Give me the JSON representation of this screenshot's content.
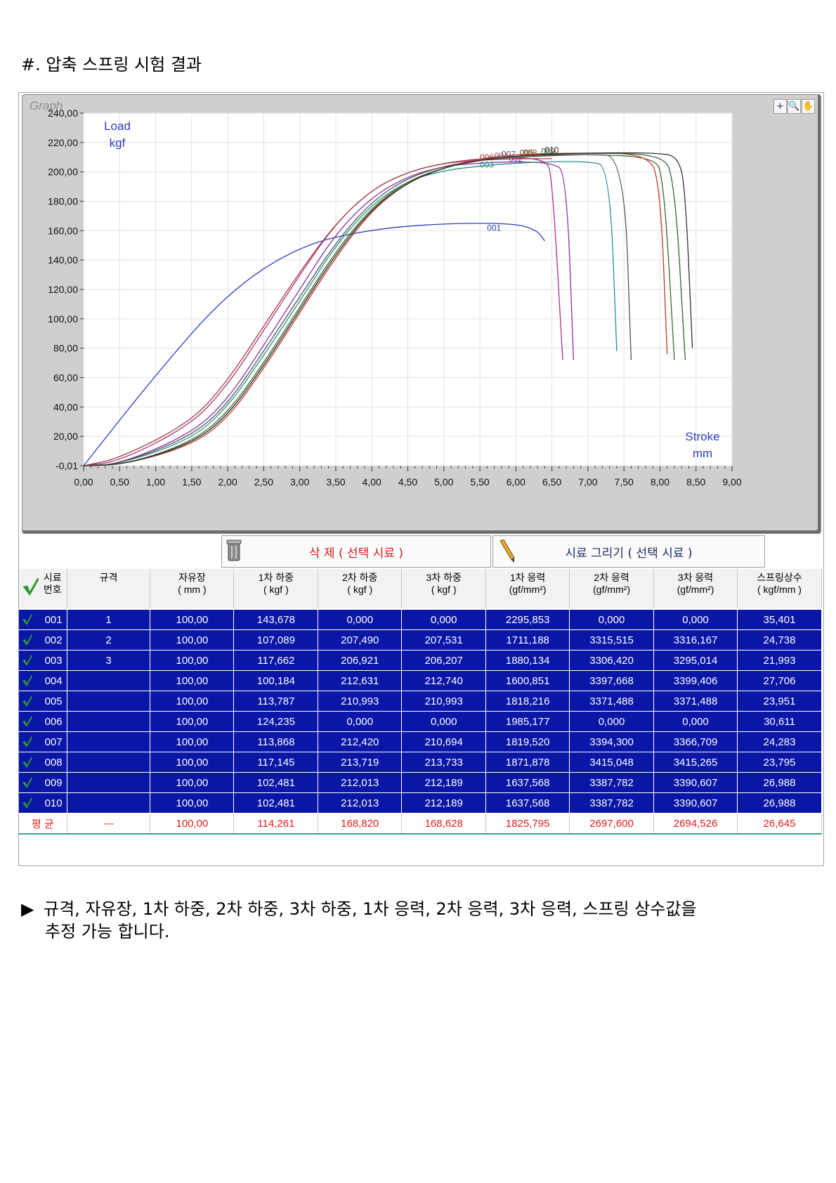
{
  "heading": "#. 압축 스프링  시험 결과",
  "graph": {
    "caption": "Graph",
    "tools": [
      "+",
      "🔍",
      "✋"
    ],
    "y_label_line1": "Load",
    "y_label_line2": "kgf",
    "x_label_line1": "Stroke",
    "x_label_line2": "mm"
  },
  "chart_data": {
    "type": "line",
    "xlim": [
      0,
      9
    ],
    "ylim": [
      -0.01,
      240
    ],
    "x_ticks": [
      "0,00",
      "0,50",
      "1,00",
      "1,50",
      "2,00",
      "2,50",
      "3,00",
      "3,50",
      "4,00",
      "4,50",
      "5,00",
      "5,50",
      "6,00",
      "6,50",
      "7,00",
      "7,50",
      "8,00",
      "8,50",
      "9,00"
    ],
    "y_ticks": [
      {
        "v": 240,
        "label": "240,00"
      },
      {
        "v": 220,
        "label": "220,00"
      },
      {
        "v": 200,
        "label": "200,00"
      },
      {
        "v": 180,
        "label": "180,00"
      },
      {
        "v": 160,
        "label": "160,00"
      },
      {
        "v": 140,
        "label": "140,00"
      },
      {
        "v": 120,
        "label": "120,00"
      },
      {
        "v": 100,
        "label": "100,00"
      },
      {
        "v": 80,
        "label": "80,00"
      },
      {
        "v": 60,
        "label": "60,00"
      },
      {
        "v": 40,
        "label": "40,00"
      },
      {
        "v": 20,
        "label": "20,00"
      },
      {
        "v": -0.01,
        "label": "-0,01"
      }
    ],
    "grid": true,
    "series": [
      {
        "name": "001",
        "color": "#2b3fbf",
        "label_at": [
          5.6,
          160
        ],
        "points": [
          [
            0,
            0
          ],
          [
            1.0,
            62
          ],
          [
            2.0,
            118
          ],
          [
            3.0,
            150
          ],
          [
            4.0,
            161
          ],
          [
            5.0,
            165
          ],
          [
            6.0,
            165
          ],
          [
            6.3,
            160
          ],
          [
            6.4,
            153
          ]
        ]
      },
      {
        "name": "002",
        "color": "#8a2fb0",
        "label_at": [
          5.9,
          207
        ],
        "points": [
          [
            0,
            0
          ],
          [
            0.5,
            1
          ],
          [
            1.5,
            22
          ],
          [
            2.0,
            45
          ],
          [
            2.5,
            82
          ],
          [
            3.0,
            120
          ],
          [
            3.5,
            158
          ],
          [
            4.0,
            183
          ],
          [
            4.5,
            197
          ],
          [
            5.0,
            204
          ],
          [
            5.5,
            206
          ],
          [
            6.0,
            207
          ],
          [
            6.5,
            206
          ],
          [
            6.7,
            200
          ],
          [
            6.8,
            72
          ]
        ]
      },
      {
        "name": "003",
        "color": "#2a8f88",
        "label_at": [
          5.5,
          203
        ],
        "points": [
          [
            0,
            0
          ],
          [
            0.5,
            1
          ],
          [
            1.5,
            18
          ],
          [
            2.0,
            40
          ],
          [
            2.5,
            75
          ],
          [
            3.0,
            112
          ],
          [
            3.5,
            150
          ],
          [
            4.0,
            178
          ],
          [
            4.5,
            194
          ],
          [
            5.0,
            201
          ],
          [
            5.5,
            204
          ],
          [
            6.0,
            206
          ],
          [
            6.5,
            207
          ],
          [
            7.0,
            207
          ],
          [
            7.3,
            204
          ],
          [
            7.4,
            78
          ]
        ]
      },
      {
        "name": "004",
        "color": "#b0307a",
        "label_at": [
          5.7,
          209
        ],
        "points": [
          [
            0,
            0
          ],
          [
            0.5,
            3
          ],
          [
            1.5,
            28
          ],
          [
            2.0,
            55
          ],
          [
            2.5,
            92
          ],
          [
            3.0,
            130
          ],
          [
            3.5,
            165
          ],
          [
            4.0,
            188
          ],
          [
            4.5,
            200
          ],
          [
            5.0,
            206
          ],
          [
            5.5,
            209
          ],
          [
            6.0,
            210
          ],
          [
            6.4,
            208
          ],
          [
            6.5,
            200
          ],
          [
            6.65,
            72
          ]
        ]
      },
      {
        "name": "005",
        "color": "#3b6a2a",
        "label_at": [
          6.05,
          211
        ],
        "points": [
          [
            0,
            0
          ],
          [
            0.6,
            1
          ],
          [
            1.5,
            16
          ],
          [
            2.0,
            36
          ],
          [
            2.5,
            70
          ],
          [
            3.0,
            108
          ],
          [
            3.5,
            146
          ],
          [
            4.0,
            176
          ],
          [
            4.5,
            194
          ],
          [
            5.0,
            203
          ],
          [
            5.5,
            208
          ],
          [
            6.0,
            211
          ],
          [
            7.0,
            212
          ],
          [
            7.9,
            210
          ],
          [
            8.05,
            198
          ],
          [
            8.2,
            72
          ]
        ]
      },
      {
        "name": "006",
        "color": "#9b3f3f",
        "label_at": [
          5.5,
          208
        ],
        "points": [
          [
            0,
            0
          ],
          [
            0.5,
            5
          ],
          [
            1.5,
            30
          ],
          [
            2.0,
            58
          ],
          [
            2.5,
            95
          ],
          [
            3.0,
            132
          ],
          [
            3.5,
            165
          ],
          [
            4.0,
            188
          ],
          [
            4.5,
            200
          ],
          [
            5.0,
            206
          ],
          [
            5.5,
            208
          ],
          [
            6.0,
            209
          ],
          [
            6.5,
            209
          ]
        ]
      },
      {
        "name": "007",
        "color": "#555555",
        "label_at": [
          5.8,
          210
        ],
        "points": [
          [
            0,
            0
          ],
          [
            0.5,
            1
          ],
          [
            1.5,
            20
          ],
          [
            2.0,
            42
          ],
          [
            2.5,
            78
          ],
          [
            3.0,
            115
          ],
          [
            3.5,
            152
          ],
          [
            4.0,
            180
          ],
          [
            4.5,
            196
          ],
          [
            5.0,
            204
          ],
          [
            5.5,
            208
          ],
          [
            6.0,
            210
          ],
          [
            7.0,
            212
          ],
          [
            7.5,
            211
          ],
          [
            7.6,
            72
          ]
        ]
      },
      {
        "name": "008",
        "color": "#c0392b",
        "label_at": [
          6.1,
          211
        ],
        "points": [
          [
            0,
            0
          ],
          [
            0.6,
            1
          ],
          [
            1.5,
            14
          ],
          [
            2.0,
            32
          ],
          [
            2.5,
            66
          ],
          [
            3.0,
            104
          ],
          [
            3.5,
            142
          ],
          [
            4.0,
            174
          ],
          [
            4.5,
            193
          ],
          [
            5.0,
            203
          ],
          [
            5.5,
            209
          ],
          [
            6.0,
            212
          ],
          [
            7.0,
            213
          ],
          [
            7.8,
            212
          ],
          [
            8.0,
            196
          ],
          [
            8.1,
            76
          ]
        ]
      },
      {
        "name": "009",
        "color": "#3a5e3a",
        "label_at": [
          6.35,
          212
        ],
        "points": [
          [
            0,
            0
          ],
          [
            0.6,
            1
          ],
          [
            1.5,
            15
          ],
          [
            2.0,
            34
          ],
          [
            2.5,
            68
          ],
          [
            3.0,
            106
          ],
          [
            3.5,
            144
          ],
          [
            4.0,
            175
          ],
          [
            4.5,
            193
          ],
          [
            5.0,
            203
          ],
          [
            5.5,
            208
          ],
          [
            6.0,
            211
          ],
          [
            7.0,
            213
          ],
          [
            8.0,
            212
          ],
          [
            8.2,
            198
          ],
          [
            8.35,
            72
          ]
        ]
      },
      {
        "name": "010",
        "color": "#333333",
        "label_at": [
          6.4,
          213
        ],
        "points": [
          [
            0,
            0
          ],
          [
            0.6,
            1
          ],
          [
            1.5,
            15
          ],
          [
            2.0,
            34
          ],
          [
            2.5,
            68
          ],
          [
            3.0,
            106
          ],
          [
            3.5,
            144
          ],
          [
            4.0,
            175
          ],
          [
            4.5,
            193
          ],
          [
            5.0,
            203
          ],
          [
            5.5,
            208
          ],
          [
            6.0,
            211
          ],
          [
            7.0,
            213
          ],
          [
            8.0,
            213
          ],
          [
            8.25,
            210
          ],
          [
            8.35,
            190
          ],
          [
            8.45,
            80
          ]
        ]
      }
    ]
  },
  "actions": {
    "delete_label": "삭 제 ( 선택 시료 )",
    "draw_label": "시료 그리기 ( 선택 시료 )"
  },
  "table": {
    "headers": [
      {
        "l1": "시료",
        "l2": "번호"
      },
      {
        "l1": "규격",
        "l2": ""
      },
      {
        "l1": "자유장",
        "l2": "( mm )"
      },
      {
        "l1": "1차 하중",
        "l2": "( kgf )"
      },
      {
        "l1": "2차 하중",
        "l2": "( kgf )"
      },
      {
        "l1": "3차 하중",
        "l2": "( kgf )"
      },
      {
        "l1": "1차 응력",
        "l2": "(gf/mm²)"
      },
      {
        "l1": "2차 응력",
        "l2": "(gf/mm²)"
      },
      {
        "l1": "3차 응력",
        "l2": "(gf/mm²)"
      },
      {
        "l1": "스프링상수",
        "l2": "( kgf/mm )"
      }
    ],
    "rows": [
      [
        "001",
        "1",
        "100,00",
        "143,678",
        "0,000",
        "0,000",
        "2295,853",
        "0,000",
        "0,000",
        "35,401"
      ],
      [
        "002",
        "2",
        "100,00",
        "107,089",
        "207,490",
        "207,531",
        "1711,188",
        "3315,515",
        "3316,167",
        "24,738"
      ],
      [
        "003",
        "3",
        "100,00",
        "117,662",
        "206,921",
        "206,207",
        "1880,134",
        "3306,420",
        "3295,014",
        "21,993"
      ],
      [
        "004",
        "",
        "100,00",
        "100,184",
        "212,631",
        "212,740",
        "1600,851",
        "3397,668",
        "3399,406",
        "27,706"
      ],
      [
        "005",
        "",
        "100,00",
        "113,787",
        "210,993",
        "210,993",
        "1818,216",
        "3371,488",
        "3371,488",
        "23,951"
      ],
      [
        "006",
        "",
        "100,00",
        "124,235",
        "0,000",
        "0,000",
        "1985,177",
        "0,000",
        "0,000",
        "30,611"
      ],
      [
        "007",
        "",
        "100,00",
        "113,868",
        "212,420",
        "210,694",
        "1819,520",
        "3394,300",
        "3366,709",
        "24,283"
      ],
      [
        "008",
        "",
        "100,00",
        "117,145",
        "213,719",
        "213,733",
        "1871,878",
        "3415,048",
        "3415,265",
        "23,795"
      ],
      [
        "009",
        "",
        "100,00",
        "102,481",
        "212,013",
        "212,189",
        "1637,568",
        "3387,782",
        "3390,607",
        "26,988"
      ],
      [
        "010",
        "",
        "100,00",
        "102,481",
        "212,013",
        "212,189",
        "1637,568",
        "3387,782",
        "3390,607",
        "26,988"
      ]
    ],
    "average": [
      "평 균",
      "---",
      "100,00",
      "114,261",
      "168,820",
      "168,628",
      "1825,795",
      "2697,600",
      "2694,526",
      "26,645"
    ]
  },
  "note": {
    "line1": "규격, 자유장, 1차 하중, 2차 하중, 3차 하중, 1차 응력, 2차 응력, 3차 응력, 스프링 상수값을",
    "line2": "추정 가능 합니다."
  },
  "colors": {
    "row_bg": "#0a16a6",
    "avg_text": "#e81c1c",
    "check": "#2f9a2f"
  }
}
